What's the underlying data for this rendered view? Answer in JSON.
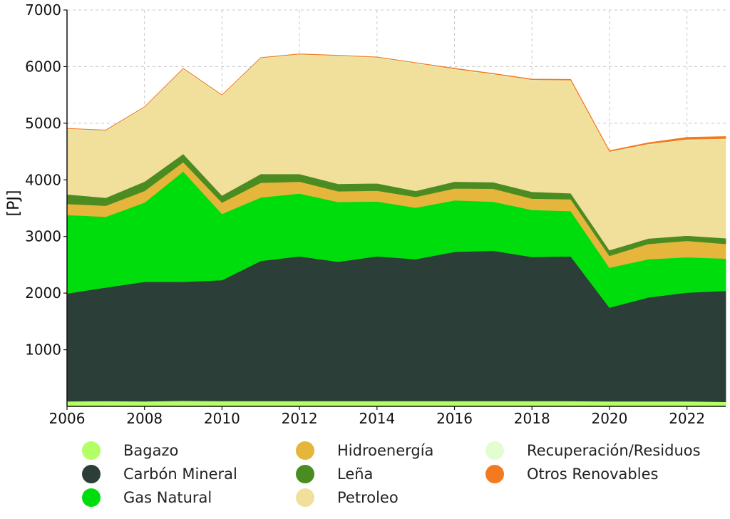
{
  "chart_data": {
    "type": "area",
    "stacked": true,
    "title": "",
    "xlabel": "",
    "ylabel": "[PJ]",
    "xlim": [
      2006,
      2023
    ],
    "ylim": [
      0,
      7000
    ],
    "x_ticks": [
      "2006",
      "2008",
      "2010",
      "2012",
      "2014",
      "2016",
      "2018",
      "2020",
      "2022"
    ],
    "y_ticks": [
      "1000",
      "2000",
      "3000",
      "4000",
      "5000",
      "6000",
      "7000"
    ],
    "grid": true,
    "legend_position": "bottom",
    "x": [
      2006,
      2007,
      2008,
      2009,
      2010,
      2011,
      2012,
      2013,
      2014,
      2015,
      2016,
      2017,
      2018,
      2019,
      2020,
      2021,
      2022,
      2023
    ],
    "series": [
      {
        "name": "Bagazo",
        "color": "#b3ff66",
        "values": [
          90,
          95,
          90,
          100,
          95,
          95,
          95,
          95,
          95,
          95,
          95,
          95,
          95,
          95,
          90,
          90,
          90,
          80
        ]
      },
      {
        "name": "Carbón Mineral",
        "color": "#2b3e37",
        "values": [
          1905,
          2005,
          2110,
          2100,
          2135,
          2475,
          2555,
          2460,
          2555,
          2505,
          2635,
          2655,
          2545,
          2555,
          1655,
          1835,
          1920,
          1960
        ]
      },
      {
        "name": "Gas Natural",
        "color": "#00dd0d",
        "values": [
          1385,
          1250,
          1400,
          1950,
          1170,
          1120,
          1110,
          1055,
          970,
          910,
          910,
          865,
          830,
          800,
          705,
          675,
          625,
          570
        ]
      },
      {
        "name": "Hidroenergía",
        "color": "#e5b53c",
        "values": [
          195,
          195,
          205,
          165,
          200,
          260,
          210,
          190,
          190,
          190,
          210,
          230,
          200,
          210,
          210,
          270,
          290,
          260
        ]
      },
      {
        "name": "Leña",
        "color": "#4a8c21",
        "values": [
          170,
          140,
          165,
          145,
          125,
          155,
          135,
          130,
          130,
          105,
          120,
          115,
          120,
          105,
          100,
          95,
          90,
          100
        ]
      },
      {
        "name": "Petroleo",
        "color": "#f1df9c",
        "values": [
          1150,
          1180,
          1305,
          1495,
          1760,
          2040,
          2105,
          2255,
          2215,
          2250,
          1980,
          1900,
          1970,
          1985,
          1730,
          1660,
          1690,
          1750
        ]
      },
      {
        "name": "Recuperación/Residuos",
        "color": "#e3fdd0",
        "values": [
          10,
          10,
          10,
          10,
          10,
          10,
          10,
          10,
          10,
          10,
          10,
          10,
          10,
          10,
          10,
          10,
          10,
          10
        ]
      },
      {
        "name": "Otros Renovables",
        "color": "#f47a1f",
        "values": [
          5,
          5,
          5,
          5,
          5,
          5,
          5,
          5,
          5,
          5,
          10,
          10,
          10,
          15,
          15,
          20,
          35,
          35
        ]
      }
    ]
  }
}
